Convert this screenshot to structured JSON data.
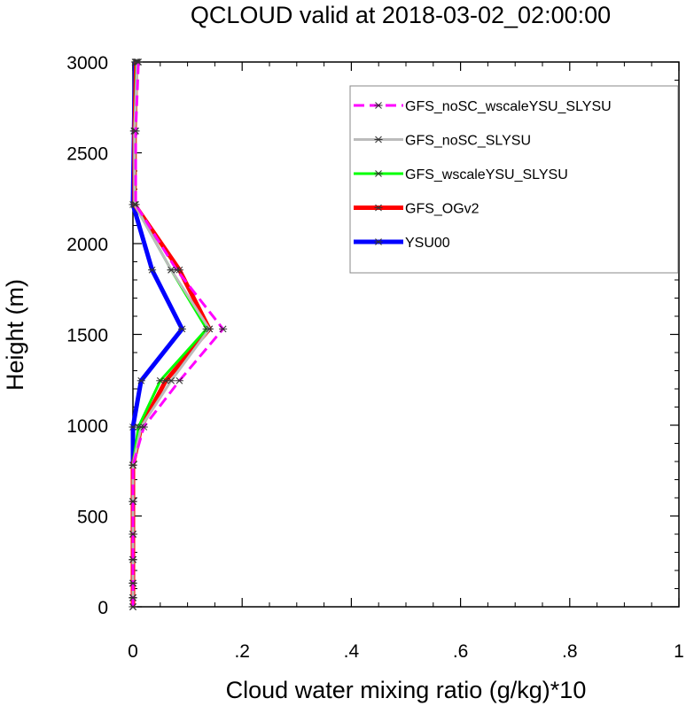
{
  "chart_data": {
    "type": "line",
    "title": "QCLOUD valid at 2018-03-02_02:00:00",
    "xlabel": "Cloud water mixing ratio (g/kg)*10",
    "ylabel": "Height (m)",
    "xlim": [
      0,
      1
    ],
    "ylim": [
      0,
      3000
    ],
    "x_ticks": [
      0,
      0.2,
      0.4,
      0.6,
      0.8,
      1
    ],
    "x_tick_labels": [
      "0",
      ".2",
      ".4",
      ".6",
      ".8",
      "1"
    ],
    "y_ticks": [
      0,
      500,
      1000,
      1500,
      2000,
      2500,
      3000
    ],
    "y_tick_labels": [
      "0",
      "500",
      "1000",
      "1500",
      "2000",
      "2500",
      "3000"
    ],
    "legend_position": "top-right",
    "series": [
      {
        "name": "GFS_noSC_wscaleYSU_SLYSU",
        "color": "#ff00ff",
        "style": "dashed",
        "points": [
          [
            0,
            0
          ],
          [
            0,
            50
          ],
          [
            0,
            130
          ],
          [
            0,
            260
          ],
          [
            0,
            400
          ],
          [
            0,
            580
          ],
          [
            0,
            780
          ],
          [
            0.02,
            990
          ],
          [
            0.085,
            1245
          ],
          [
            0.165,
            1530
          ],
          [
            0.08,
            1855
          ],
          [
            0.005,
            2215
          ],
          [
            0.005,
            2620
          ],
          [
            0.01,
            3000
          ]
        ]
      },
      {
        "name": "GFS_noSC_SLYSU",
        "color": "#bbbbbb",
        "style": "solid",
        "points": [
          [
            0,
            0
          ],
          [
            0,
            50
          ],
          [
            0,
            130
          ],
          [
            0,
            260
          ],
          [
            0,
            400
          ],
          [
            0,
            580
          ],
          [
            0,
            780
          ],
          [
            0.015,
            990
          ],
          [
            0.07,
            1245
          ],
          [
            0.14,
            1530
          ],
          [
            0.07,
            1855
          ],
          [
            0.003,
            2215
          ],
          [
            0.003,
            2620
          ],
          [
            0.008,
            3000
          ]
        ]
      },
      {
        "name": "GFS_wscaleYSU_SLYSU",
        "color": "#00ff00",
        "style": "solid",
        "points": [
          [
            0,
            0
          ],
          [
            0,
            50
          ],
          [
            0,
            130
          ],
          [
            0,
            260
          ],
          [
            0,
            400
          ],
          [
            0,
            580
          ],
          [
            0,
            780
          ],
          [
            0.01,
            990
          ],
          [
            0.05,
            1245
          ],
          [
            0.135,
            1530
          ],
          [
            0.07,
            1855
          ],
          [
            0.003,
            2215
          ],
          [
            0.003,
            2620
          ],
          [
            0.007,
            3000
          ]
        ]
      },
      {
        "name": "GFS_OGv2",
        "color": "#ff0000",
        "style": "solid",
        "points": [
          [
            0,
            0
          ],
          [
            0,
            50
          ],
          [
            0,
            130
          ],
          [
            0,
            260
          ],
          [
            0,
            400
          ],
          [
            0,
            580
          ],
          [
            0,
            780
          ],
          [
            0.015,
            990
          ],
          [
            0.06,
            1245
          ],
          [
            0.14,
            1530
          ],
          [
            0.085,
            1855
          ],
          [
            0.003,
            2215
          ],
          [
            0.003,
            2620
          ],
          [
            0.006,
            3000
          ]
        ]
      },
      {
        "name": "YSU00",
        "color": "#0000ff",
        "style": "solid",
        "points": [
          [
            0,
            0
          ],
          [
            0,
            50
          ],
          [
            0,
            130
          ],
          [
            0,
            260
          ],
          [
            0,
            400
          ],
          [
            0,
            580
          ],
          [
            0,
            780
          ],
          [
            0,
            990
          ],
          [
            0.015,
            1245
          ],
          [
            0.09,
            1530
          ],
          [
            0.035,
            1855
          ],
          [
            0,
            2215
          ],
          [
            0.002,
            2620
          ],
          [
            0.004,
            3000
          ]
        ]
      }
    ]
  }
}
